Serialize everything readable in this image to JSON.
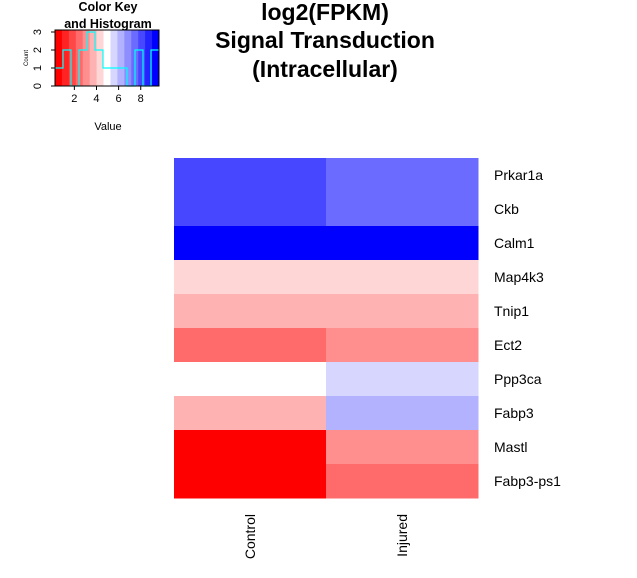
{
  "title_lines": [
    "log2(FPKM)",
    "Signal Transduction",
    "(Intracellular)"
  ],
  "color_key": {
    "title_lines": [
      "Color Key",
      "and Histogram"
    ],
    "xlabel": "Value",
    "ylabel": "Count",
    "x_ticks": [
      "2",
      "4",
      "6",
      "8"
    ],
    "y_ticks": [
      "0",
      "1",
      "2",
      "3"
    ],
    "colors": [
      "#ff0000",
      "#ff2323",
      "#ff4747",
      "#ff6b6b",
      "#ff8e8e",
      "#ffb2b2",
      "#ffd6d6",
      "#ffffff",
      "#d6d6ff",
      "#b2b2ff",
      "#8e8eff",
      "#6b6bff",
      "#4747ff",
      "#2323ff",
      "#0000ff"
    ],
    "histogram_line_color": "#00ffff",
    "histogram_counts": [
      1,
      2,
      0,
      2,
      3,
      2,
      1,
      1,
      1,
      0,
      2,
      0,
      2
    ],
    "value_range": [
      0.25,
      9.65
    ],
    "count_range": [
      0,
      3
    ]
  },
  "chart_data": {
    "type": "heatmap",
    "title": "log2(FPKM)\nSignal Transduction\n(Intracellular)",
    "columns": [
      "Control",
      "Injured"
    ],
    "rows": [
      "Prkar1a",
      "Ckb",
      "Calm1",
      "Map4k3",
      "Tnip1",
      "Ect2",
      "Ppp3ca",
      "Fabp3",
      "Mastl",
      "Fabp3-ps1"
    ],
    "cell_colors": [
      [
        "#4747ff",
        "#6b6bff"
      ],
      [
        "#4747ff",
        "#6b6bff"
      ],
      [
        "#0000ff",
        "#0000ff"
      ],
      [
        "#ffd6d6",
        "#ffd6d6"
      ],
      [
        "#ffb2b2",
        "#ffb2b2"
      ],
      [
        "#ff6b6b",
        "#ff8e8e"
      ],
      [
        "#ffffff",
        "#d6d6ff"
      ],
      [
        "#ffb2b2",
        "#b2b2ff"
      ],
      [
        "#ff0000",
        "#ff8e8e"
      ],
      [
        "#ff0000",
        "#ff6b6b"
      ]
    ],
    "color_scale": "red (low) → white → blue (high)"
  }
}
